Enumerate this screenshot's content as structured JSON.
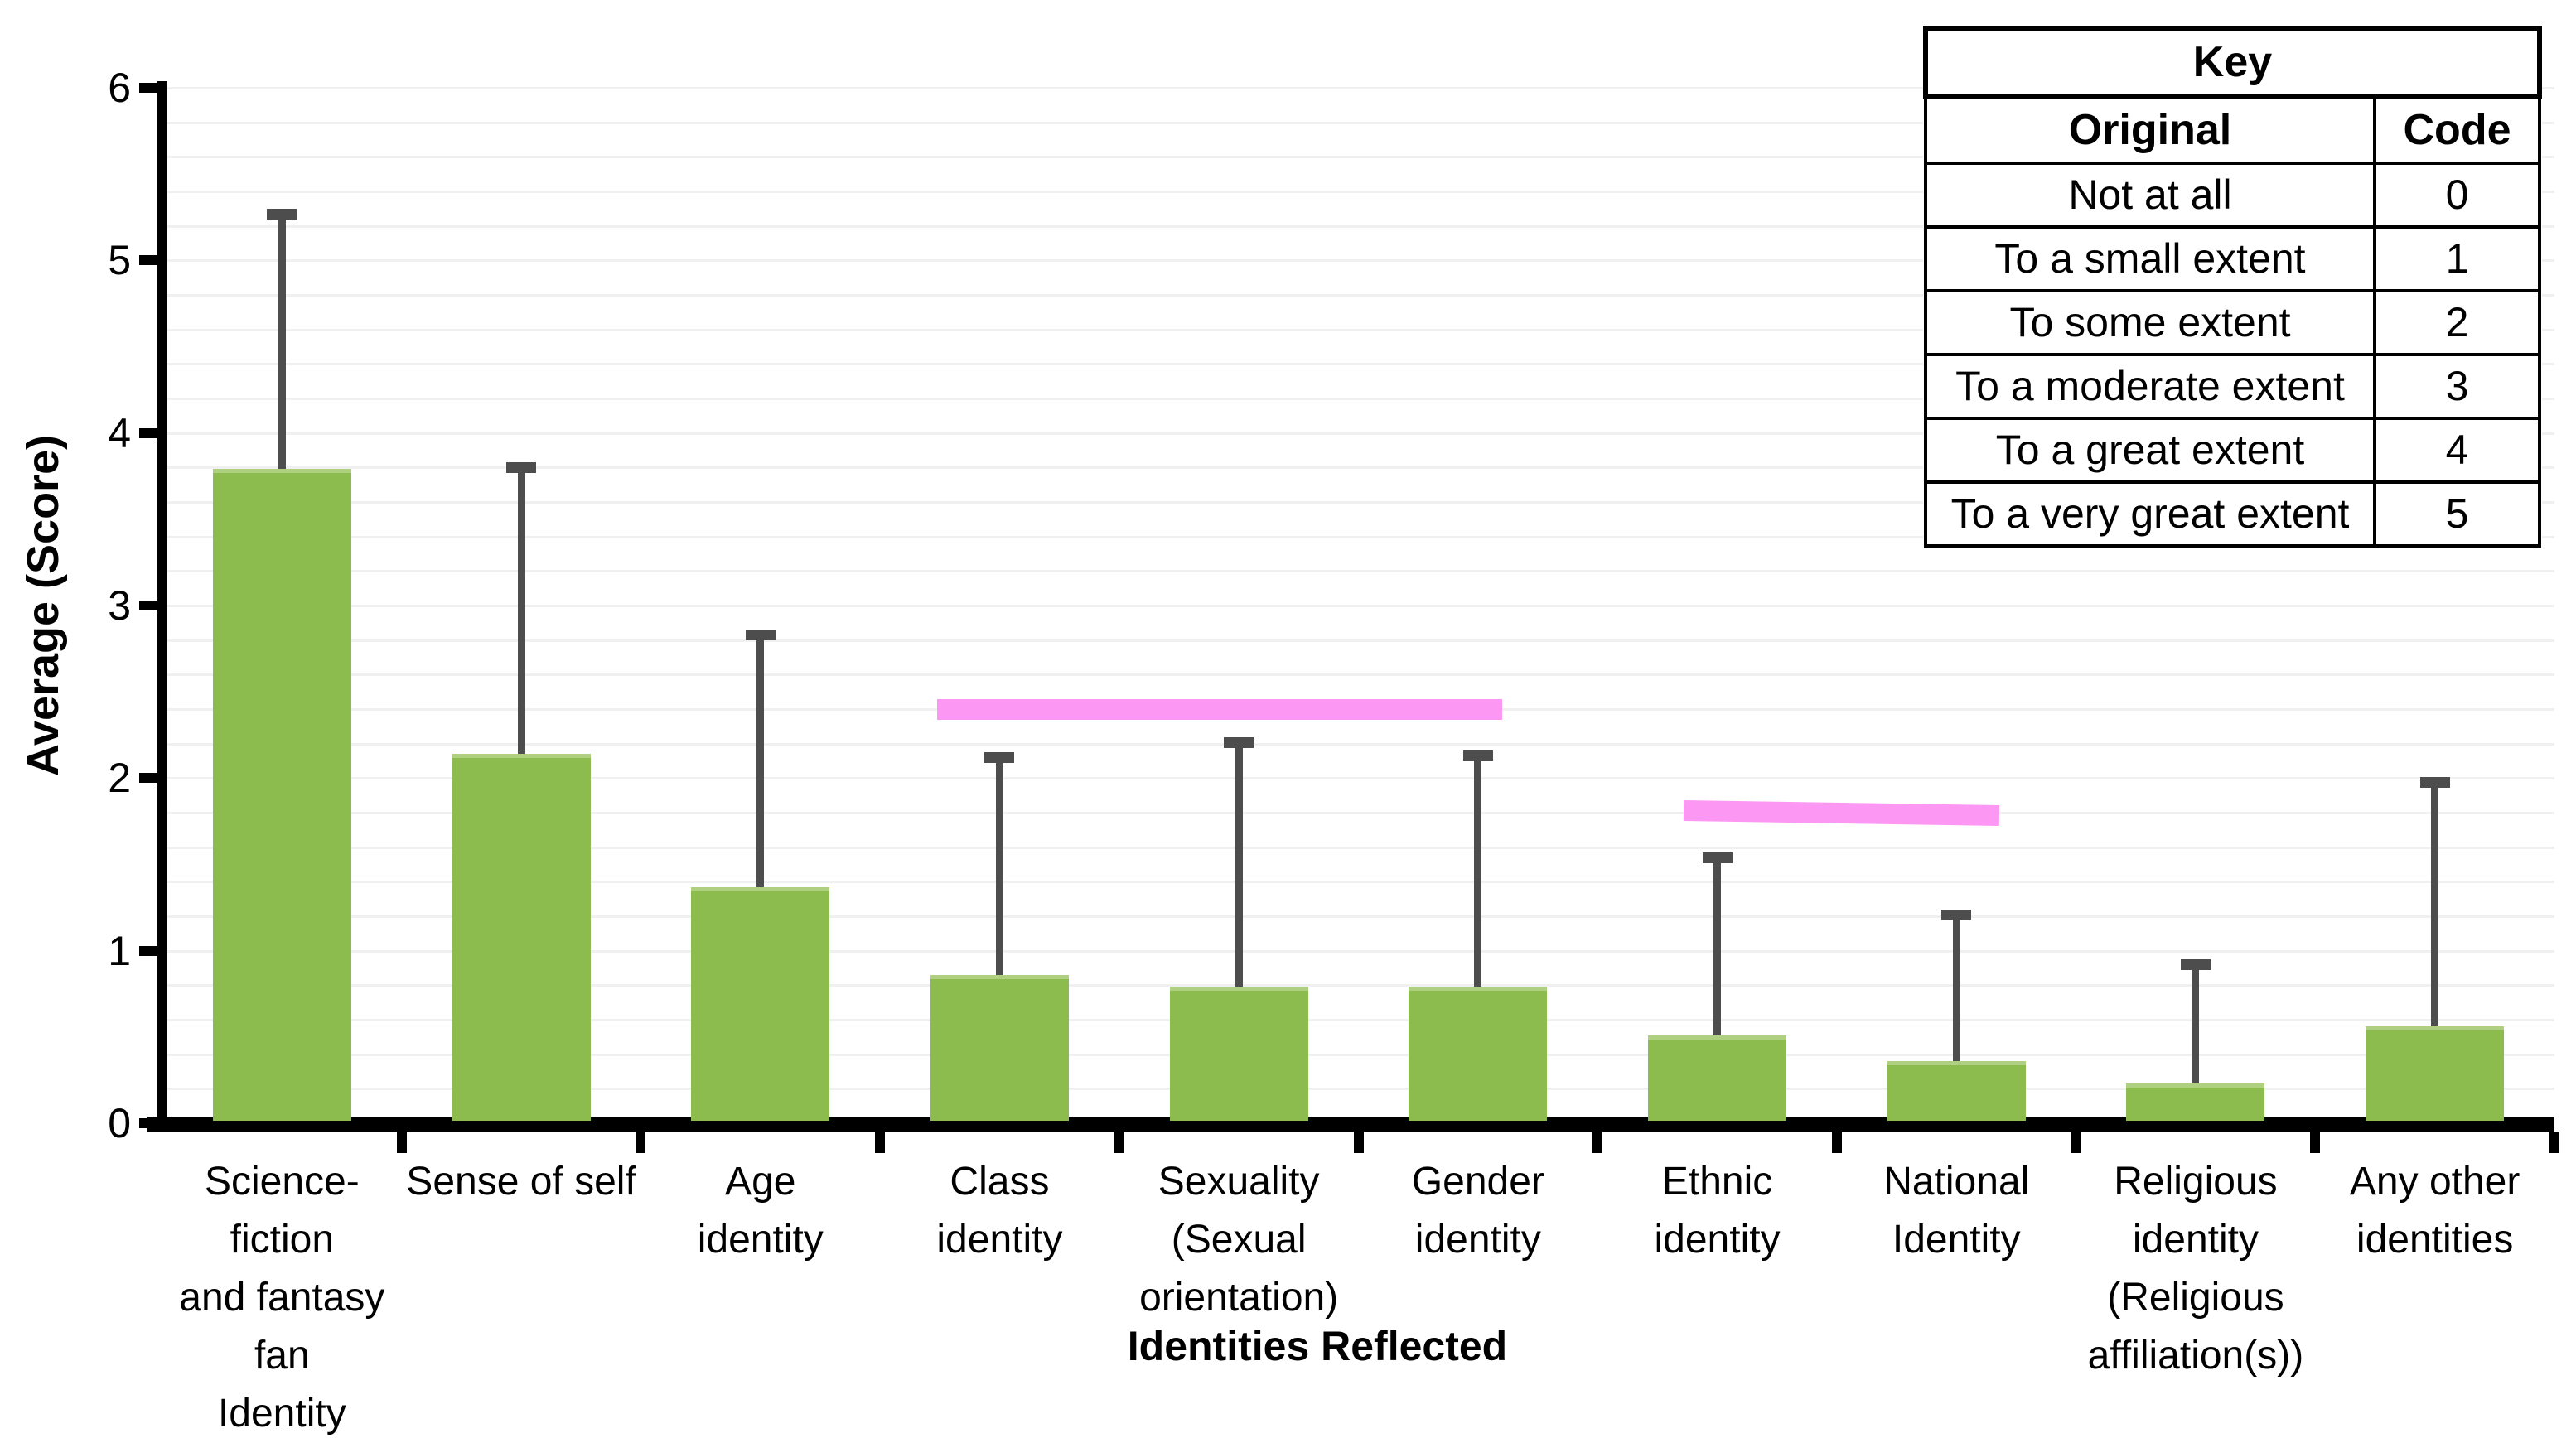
{
  "chart_data": {
    "type": "bar",
    "title": "",
    "xlabel": "Identities Reflected",
    "ylabel": "Average (Score)",
    "ylim": [
      0,
      6
    ],
    "yticks": [
      0,
      1,
      2,
      3,
      4,
      5,
      6
    ],
    "minor_gridline_interval": 0.2,
    "grid": "horizontal-minor-only",
    "legend_position": "none",
    "bar_color": "#8dbc4e",
    "error_bar_color": "#4d4d4d",
    "significance_bar_color": "#fc98f3",
    "categories": [
      "Science-fiction and fantasy fan Identity",
      "Sense of self",
      "Age identity",
      "Class identity",
      "Sexuality (Sexual orientation)",
      "Gender identity",
      "Ethnic identity",
      "National Identity",
      "Religious identity (Religious affiliation(s))",
      "Any other identities"
    ],
    "category_label_lines": [
      [
        "Science-fiction",
        "and fantasy",
        "fan",
        "Identity"
      ],
      [
        "Sense of self"
      ],
      [
        "Age",
        "identity"
      ],
      [
        "Class",
        "identity"
      ],
      [
        "Sexuality",
        "(Sexual",
        "orientation)"
      ],
      [
        "Gender",
        "identity"
      ],
      [
        "Ethnic",
        "identity"
      ],
      [
        "National",
        "Identity"
      ],
      [
        "Religious",
        "identity",
        "(Religious",
        "affiliation(s))"
      ],
      [
        "Any other",
        "identities"
      ]
    ],
    "values": [
      3.79,
      2.14,
      1.37,
      0.86,
      0.79,
      0.79,
      0.51,
      0.36,
      0.23,
      0.56
    ],
    "error_top": [
      5.27,
      3.8,
      2.83,
      2.12,
      2.21,
      2.13,
      1.54,
      1.21,
      0.92,
      1.98
    ],
    "significance_bars": [
      {
        "spans": "Class identity to Gender identity",
        "from_slot": 3.24,
        "to_slot": 5.6,
        "value": 2.4,
        "tilt_deg": 0
      },
      {
        "spans": "Ethnic identity to National Identity",
        "from_slot": 6.36,
        "to_slot": 7.68,
        "value": 1.8,
        "tilt_deg": 0.9
      }
    ]
  },
  "key_table": {
    "title": "Key",
    "columns": [
      "Original",
      "Code"
    ],
    "rows": [
      [
        "Not at all",
        "0"
      ],
      [
        "To a small extent",
        "1"
      ],
      [
        "To some extent",
        "2"
      ],
      [
        "To a moderate extent",
        "3"
      ],
      [
        "To a great extent",
        "4"
      ],
      [
        "To a very great extent",
        "5"
      ]
    ]
  }
}
